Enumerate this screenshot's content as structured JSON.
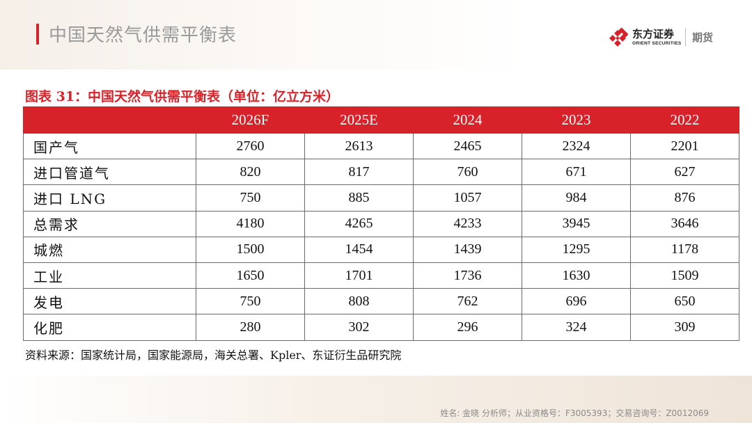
{
  "header": {
    "title": "中国天然气供需平衡表",
    "logo": {
      "name": "东方证券",
      "sub": "ORIENT SECURITIES",
      "division": "期货",
      "brand_color": "#d7222a"
    }
  },
  "figure": {
    "caption": "图表 31：中国天然气供需平衡表（单位：亿立方米）"
  },
  "table": {
    "header_color": "#d7222a",
    "columns": [
      "",
      "2026F",
      "2025E",
      "2024",
      "2023",
      "2022"
    ],
    "rows": [
      [
        "国产气",
        "2760",
        "2613",
        "2465",
        "2324",
        "2201"
      ],
      [
        "进口管道气",
        "820",
        "817",
        "760",
        "671",
        "627"
      ],
      [
        "进口 LNG",
        "750",
        "885",
        "1057",
        "984",
        "876"
      ],
      [
        "总需求",
        "4180",
        "4265",
        "4233",
        "3945",
        "3646"
      ],
      [
        "城燃",
        "1500",
        "1454",
        "1439",
        "1295",
        "1178"
      ],
      [
        "工业",
        "1650",
        "1701",
        "1736",
        "1630",
        "1509"
      ],
      [
        "发电",
        "750",
        "808",
        "762",
        "696",
        "650"
      ],
      [
        "化肥",
        "280",
        "302",
        "296",
        "324",
        "309"
      ]
    ]
  },
  "source": "资料来源：国家统计局，国家能源局，海关总署、Kpler、东证衍生品研究院",
  "footer": {
    "info": "姓名: 金晓 分析师；从业资格号：F3005393；交易咨询号：Z0012069"
  }
}
